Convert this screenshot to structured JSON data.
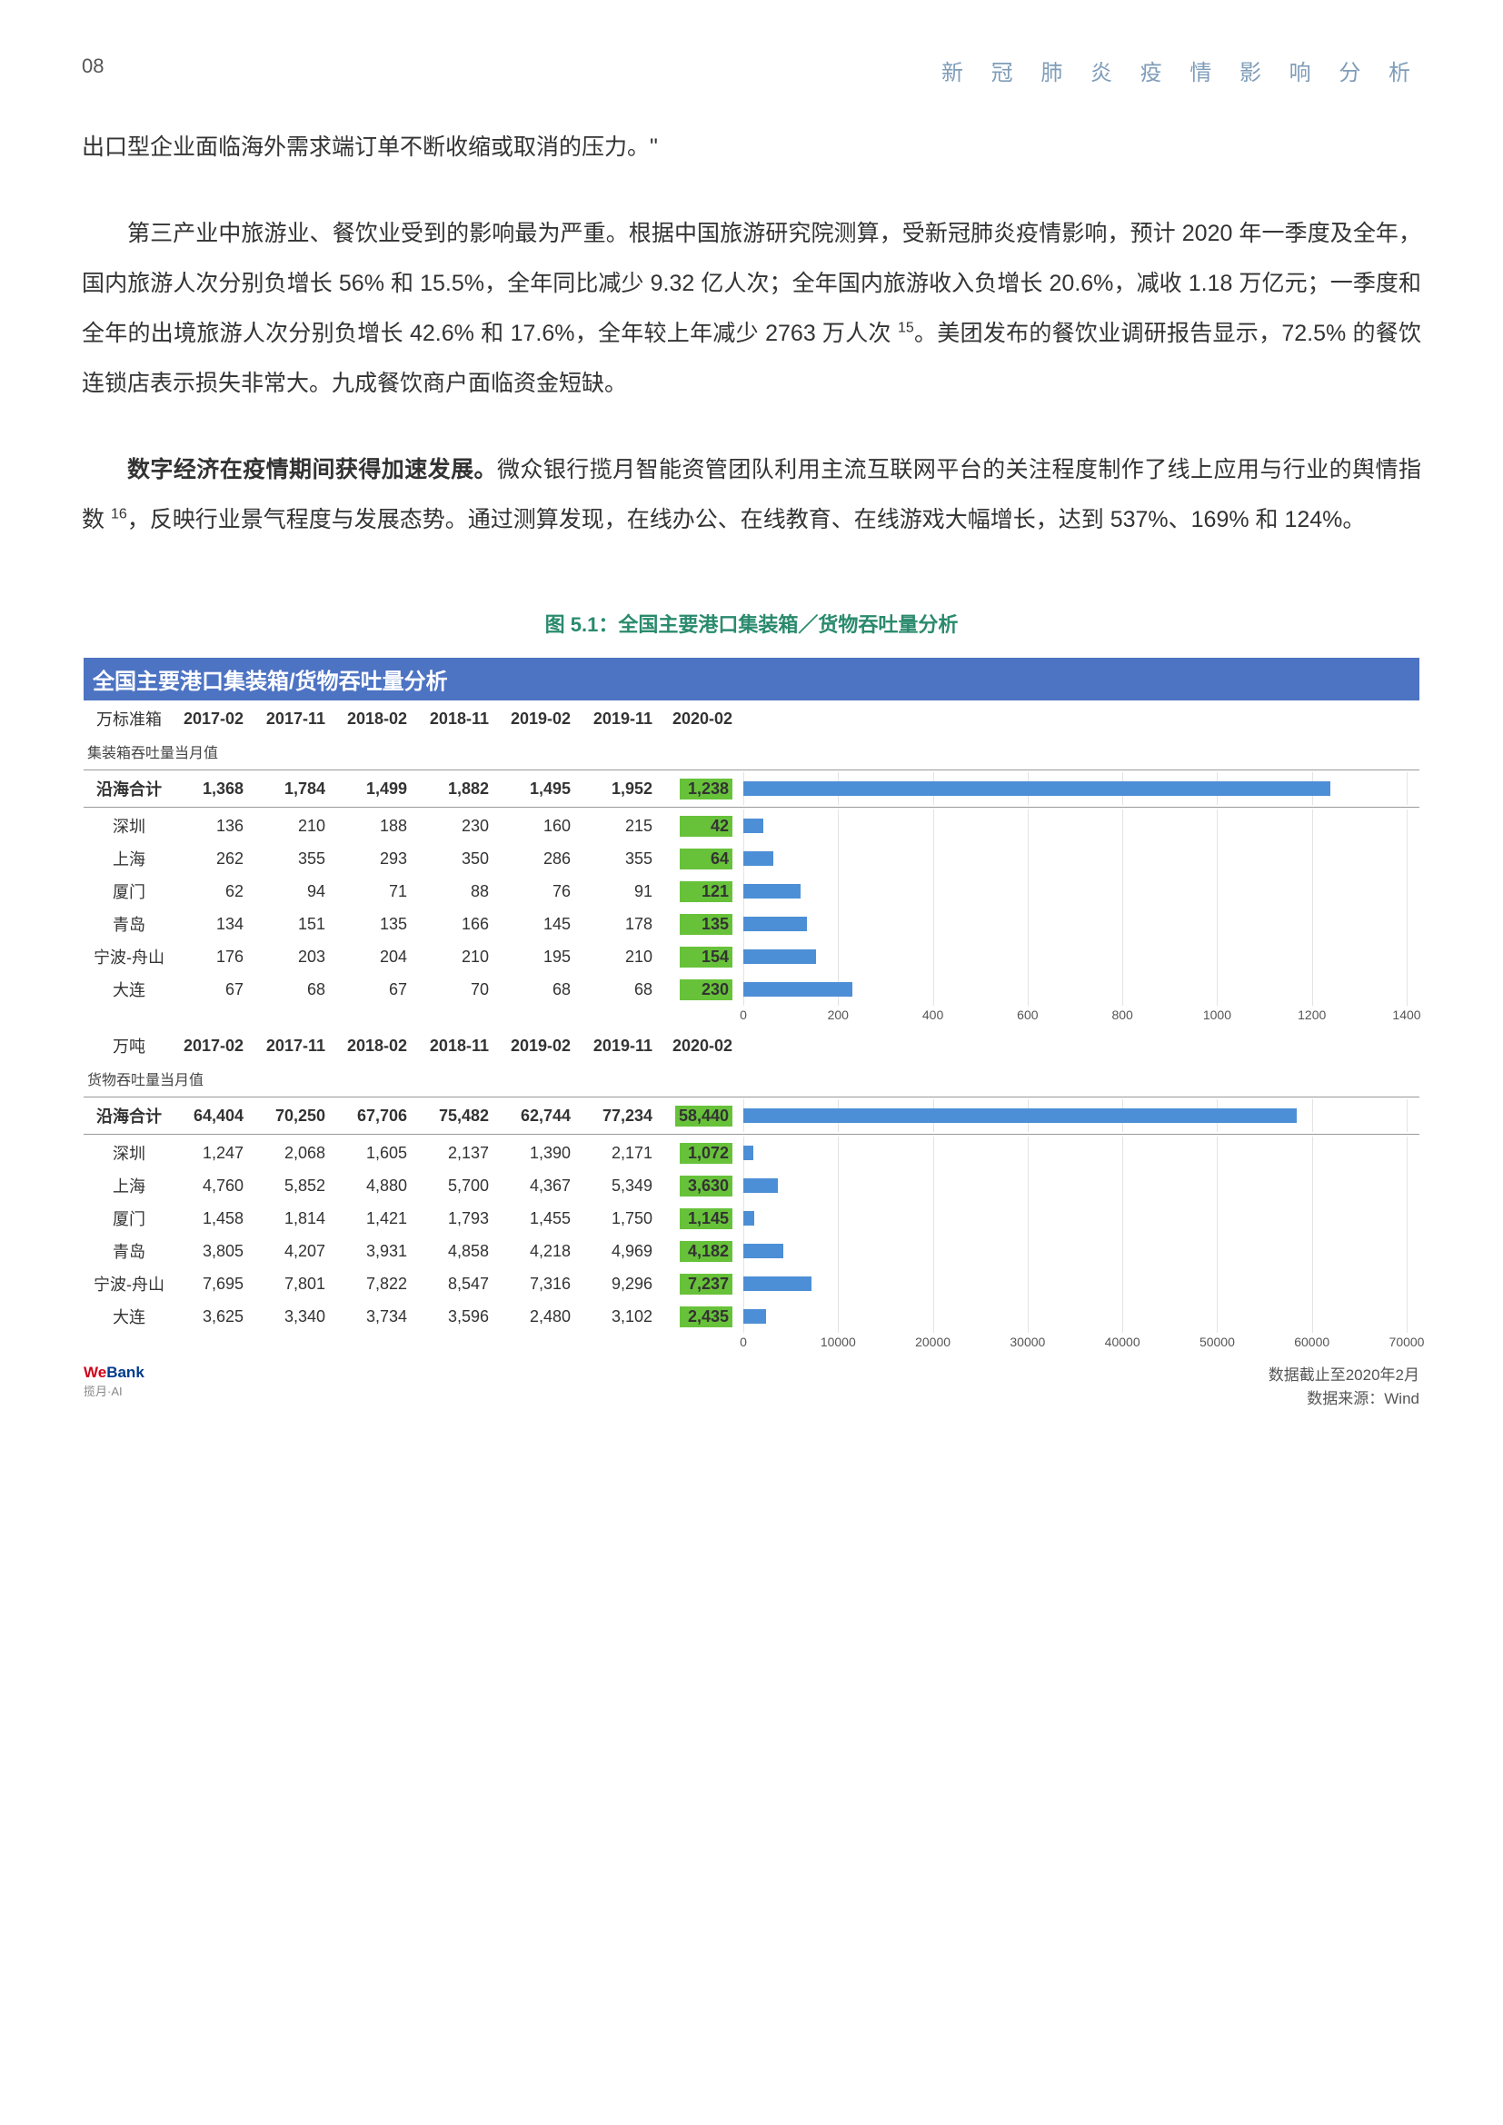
{
  "page": {
    "number": "08",
    "header": "新 冠 肺 炎 疫 情 影 响 分 析"
  },
  "paragraphs": {
    "p1": "出口型企业面临海外需求端订单不断收缩或取消的压力。\"",
    "p2a": "第三产业中旅游业、餐饮业受到的影响最为严重。根据中国旅游研究院测算，受新冠肺炎疫情影响，预计 2020 年一季度及全年，国内旅游人次分别负增长 56% 和 15.5%，全年同比减少 9.32 亿人次；全年国内旅游收入负增长 20.6%，减收 1.18 万亿元；一季度和全年的出境旅游人次分别负增长 42.6% 和 17.6%，全年较上年减少 2763 万人次 ",
    "p2sup": "15",
    "p2b": "。美团发布的餐饮业调研报告显示，72.5% 的餐饮连锁店表示损失非常大。九成餐饮商户面临资金短缺。",
    "p3bold": "数字经济在疫情期间获得加速发展。",
    "p3a": "微众银行揽月智能资管团队利用主流互联网平台的关注程度制作了线上应用与行业的舆情指数 ",
    "p3sup": "16",
    "p3b": "，反映行业景气程度与发展态势。通过测算发现，在线办公、在线教育、在线游戏大幅增长，达到 537%、169% 和 124%。"
  },
  "figure": {
    "caption": "图 5.1：全国主要港口集装箱／货物吞吐量分析",
    "title_bar": "全国主要港口集装箱/货物吞吐量分析",
    "highlight_color": "#67c23a",
    "bar_color": "#4d8fd6",
    "grid_color": "#e3e3e3",
    "table1": {
      "unit": "万标准箱",
      "sub": "集装箱吞吐量当月值",
      "headers": [
        "2017-02",
        "2017-11",
        "2018-02",
        "2018-11",
        "2019-02",
        "2019-11",
        "2020-02"
      ],
      "rows": [
        {
          "label": "沿海合计",
          "v": [
            "1,368",
            "1,784",
            "1,499",
            "1,882",
            "1,495",
            "1,952",
            "1,238"
          ],
          "bar": 1238
        },
        {
          "label": "深圳",
          "v": [
            "136",
            "210",
            "188",
            "230",
            "160",
            "215",
            "42"
          ],
          "bar": 42
        },
        {
          "label": "上海",
          "v": [
            "262",
            "355",
            "293",
            "350",
            "286",
            "355",
            "64"
          ],
          "bar": 64
        },
        {
          "label": "厦门",
          "v": [
            "62",
            "94",
            "71",
            "88",
            "76",
            "91",
            "121"
          ],
          "bar": 121
        },
        {
          "label": "青岛",
          "v": [
            "134",
            "151",
            "135",
            "166",
            "145",
            "178",
            "135"
          ],
          "bar": 135
        },
        {
          "label": "宁波-舟山",
          "v": [
            "176",
            "203",
            "204",
            "210",
            "195",
            "210",
            "154"
          ],
          "bar": 154
        },
        {
          "label": "大连",
          "v": [
            "67",
            "68",
            "67",
            "70",
            "68",
            "68",
            "230"
          ],
          "bar": 230
        }
      ],
      "xmax": 1400,
      "xticks": [
        0,
        200,
        400,
        600,
        800,
        1000,
        1200,
        1400
      ]
    },
    "table2": {
      "unit": "万吨",
      "sub": "货物吞吐量当月值",
      "headers": [
        "2017-02",
        "2017-11",
        "2018-02",
        "2018-11",
        "2019-02",
        "2019-11",
        "2020-02"
      ],
      "rows": [
        {
          "label": "沿海合计",
          "v": [
            "64,404",
            "70,250",
            "67,706",
            "75,482",
            "62,744",
            "77,234",
            "58,440"
          ],
          "bar": 58440
        },
        {
          "label": "深圳",
          "v": [
            "1,247",
            "2,068",
            "1,605",
            "2,137",
            "1,390",
            "2,171",
            "1,072"
          ],
          "bar": 1072
        },
        {
          "label": "上海",
          "v": [
            "4,760",
            "5,852",
            "4,880",
            "5,700",
            "4,367",
            "5,349",
            "3,630"
          ],
          "bar": 3630
        },
        {
          "label": "厦门",
          "v": [
            "1,458",
            "1,814",
            "1,421",
            "1,793",
            "1,455",
            "1,750",
            "1,145"
          ],
          "bar": 1145
        },
        {
          "label": "青岛",
          "v": [
            "3,805",
            "4,207",
            "3,931",
            "4,858",
            "4,218",
            "4,969",
            "4,182"
          ],
          "bar": 4182
        },
        {
          "label": "宁波-舟山",
          "v": [
            "7,695",
            "7,801",
            "7,822",
            "8,547",
            "7,316",
            "9,296",
            "7,237"
          ],
          "bar": 7237
        },
        {
          "label": "大连",
          "v": [
            "3,625",
            "3,340",
            "3,734",
            "3,596",
            "2,480",
            "3,102",
            "2,435"
          ],
          "bar": 2435
        }
      ],
      "xmax": 70000,
      "xticks": [
        0,
        10000,
        20000,
        30000,
        40000,
        50000,
        60000,
        70000
      ]
    },
    "footer": {
      "logo_we": "We",
      "logo_bank": "Bank",
      "logo_sub": "揽月·AI",
      "src1": "数据截止至2020年2月",
      "src2": "数据来源：Wind"
    }
  }
}
